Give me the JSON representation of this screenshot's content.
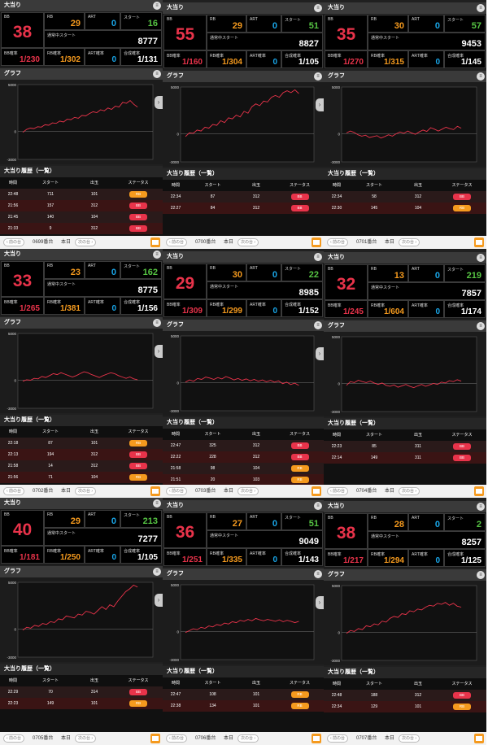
{
  "labels": {
    "section_hit": "大当り",
    "bb": "BB",
    "rb": "RB",
    "art": "ART",
    "start": "スタート",
    "total_start": "通常中スタート",
    "bb_prob": "BB確率",
    "rb_prob": "RB確率",
    "art_prob": "ART確率",
    "total_prob": "合成確率",
    "graph": "グラフ",
    "history": "大当り履歴（一覧）",
    "col_time": "時間",
    "col_start": "スタート",
    "col_out": "出玉",
    "col_status": "ステータス",
    "prev": "‹ 前の台",
    "next": "次の台 ›",
    "today": "本日",
    "menu_icon": "≡",
    "arrow": "›"
  },
  "axis": {
    "top": "5000",
    "zero": "0",
    "bottom": "-3000"
  },
  "machines": [
    {
      "id": "m0699",
      "name": "0699番台",
      "bb": "38",
      "rb": "29",
      "art": "0",
      "start": "16",
      "total_start": "8777",
      "bb_prob": "1/230",
      "rb_prob": "1/302",
      "art_prob": "0",
      "total_prob": "1/131",
      "graph": [
        -100,
        200,
        350,
        300,
        500,
        450,
        700,
        650,
        900,
        850,
        1100,
        1000,
        1300,
        1250,
        1500,
        1400,
        1700,
        1650,
        1900,
        2100,
        2000,
        2300,
        2200,
        2500,
        2350,
        2700,
        2600,
        3100,
        3000,
        3300,
        2900,
        2600
      ],
      "history": [
        {
          "time": "22:48",
          "start": "711",
          "out": "101",
          "status": "RB"
        },
        {
          "time": "21:56",
          "start": "157",
          "out": "312",
          "status": "BB"
        },
        {
          "time": "21:45",
          "start": "140",
          "out": "104",
          "status": "BB"
        },
        {
          "time": "21:33",
          "start": "9",
          "out": "312",
          "status": "BB"
        }
      ]
    },
    {
      "id": "m0700",
      "name": "0700番台",
      "bb": "55",
      "rb": "29",
      "art": "0",
      "start": "51",
      "total_start": "8827",
      "bb_prob": "1/160",
      "rb_prob": "1/304",
      "art_prob": "0",
      "total_prob": "1/105",
      "graph": [
        -300,
        100,
        50,
        400,
        300,
        700,
        600,
        1000,
        900,
        1400,
        1200,
        1700,
        1600,
        2000,
        1800,
        2400,
        2200,
        2900,
        3200,
        3000,
        3500,
        3400,
        3900,
        4100,
        3900,
        4400,
        4600,
        4400,
        4700,
        4300
      ],
      "history": [
        {
          "time": "22:34",
          "start": "87",
          "out": "312",
          "status": "BB"
        },
        {
          "time": "22:27",
          "start": "84",
          "out": "312",
          "status": "BB"
        }
      ]
    },
    {
      "id": "m0701",
      "name": "0701番台",
      "bb": "35",
      "rb": "30",
      "art": "0",
      "start": "57",
      "total_start": "9453",
      "bb_prob": "1/270",
      "rb_prob": "1/315",
      "art_prob": "0",
      "total_prob": "1/145",
      "graph": [
        100,
        300,
        150,
        -100,
        -250,
        -150,
        -400,
        -300,
        -200,
        -450,
        -300,
        -100,
        -250,
        0,
        200,
        50,
        300,
        100,
        -50,
        200,
        400,
        250,
        650,
        500,
        300,
        500,
        700,
        550,
        450,
        800,
        600
      ],
      "history": [
        {
          "time": "22:34",
          "start": "58",
          "out": "312",
          "status": "BB"
        },
        {
          "time": "22:30",
          "start": "145",
          "out": "104",
          "status": "RB"
        }
      ]
    },
    {
      "id": "m0702",
      "name": "0702番台",
      "bb": "33",
      "rb": "23",
      "art": "0",
      "start": "162",
      "total_start": "8775",
      "bb_prob": "1/265",
      "rb_prob": "1/381",
      "art_prob": "0",
      "total_prob": "1/156",
      "graph": [
        -100,
        50,
        0,
        200,
        150,
        400,
        300,
        500,
        700,
        600,
        800,
        650,
        500,
        350,
        500,
        700,
        900,
        800,
        600,
        450,
        300,
        500,
        650,
        800,
        700,
        500,
        350,
        200,
        350,
        150,
        50
      ],
      "history": [
        {
          "time": "22:18",
          "start": "87",
          "out": "101",
          "status": "RB"
        },
        {
          "time": "22:13",
          "start": "194",
          "out": "312",
          "status": "BB"
        },
        {
          "time": "21:58",
          "start": "14",
          "out": "312",
          "status": "BB"
        },
        {
          "time": "21:56",
          "start": "71",
          "out": "104",
          "status": "RB"
        }
      ]
    },
    {
      "id": "m0703",
      "name": "0703番台",
      "bb": "29",
      "rb": "30",
      "art": "0",
      "start": "22",
      "total_start": "8985",
      "bb_prob": "1/309",
      "rb_prob": "1/299",
      "art_prob": "0",
      "total_prob": "1/152",
      "graph": [
        50,
        300,
        150,
        450,
        350,
        600,
        500,
        350,
        550,
        400,
        650,
        500,
        300,
        450,
        250,
        400,
        200,
        350,
        150,
        300,
        100,
        250,
        50,
        200,
        -100,
        50,
        -200,
        -50,
        -300
      ],
      "history": [
        {
          "time": "22:47",
          "start": "325",
          "out": "312",
          "status": "BB"
        },
        {
          "time": "22:22",
          "start": "228",
          "out": "312",
          "status": "BB"
        },
        {
          "time": "21:58",
          "start": "98",
          "out": "104",
          "status": "RB"
        },
        {
          "time": "21:51",
          "start": "20",
          "out": "103",
          "status": "RB"
        }
      ]
    },
    {
      "id": "m0704",
      "name": "0704番台",
      "bb": "32",
      "rb": "13",
      "art": "0",
      "start": "219",
      "total_start": "7857",
      "bb_prob": "1/245",
      "rb_prob": "1/604",
      "art_prob": "0",
      "total_prob": "1/174",
      "graph": [
        -200,
        200,
        100,
        350,
        200,
        100,
        250,
        50,
        -100,
        50,
        -200,
        -300,
        -150,
        -400,
        -250,
        -100,
        -300,
        -450,
        -250,
        -100,
        -300,
        -150,
        0,
        -100,
        150,
        50,
        300,
        200,
        400,
        250
      ],
      "history": [
        {
          "time": "22:23",
          "start": "85",
          "out": "311",
          "status": "BB"
        },
        {
          "time": "22:14",
          "start": "149",
          "out": "311",
          "status": "BB"
        }
      ]
    },
    {
      "id": "m0705",
      "name": "0705番台",
      "bb": "40",
      "rb": "29",
      "art": "0",
      "start": "213",
      "total_start": "7277",
      "bb_prob": "1/181",
      "rb_prob": "1/250",
      "art_prob": "0",
      "total_prob": "1/105",
      "graph": [
        -100,
        200,
        100,
        400,
        300,
        600,
        500,
        800,
        700,
        1100,
        1000,
        1400,
        1300,
        1200,
        1600,
        1500,
        1900,
        1800,
        1600,
        2000,
        2400,
        2100,
        2600,
        2400,
        3000,
        3500,
        4000,
        4300,
        4700,
        4500
      ],
      "history": [
        {
          "time": "22:29",
          "start": "70",
          "out": "314",
          "status": "BB"
        },
        {
          "time": "22:23",
          "start": "149",
          "out": "101",
          "status": "RB"
        }
      ]
    },
    {
      "id": "m0706",
      "name": "0706番台",
      "bb": "36",
      "rb": "27",
      "art": "0",
      "start": "51",
      "total_start": "9049",
      "bb_prob": "1/251",
      "rb_prob": "1/335",
      "art_prob": "0",
      "total_prob": "1/143",
      "graph": [
        -100,
        100,
        300,
        200,
        450,
        350,
        600,
        500,
        750,
        650,
        900,
        800,
        1050,
        950,
        1200,
        1100,
        1300,
        1150,
        1400,
        1250,
        1150,
        1300,
        1200,
        1100,
        1250,
        1050,
        1200,
        1100,
        950,
        1100
      ],
      "history": [
        {
          "time": "22:47",
          "start": "108",
          "out": "101",
          "status": "RB"
        },
        {
          "time": "22:38",
          "start": "134",
          "out": "101",
          "status": "RB"
        }
      ]
    },
    {
      "id": "m0707",
      "name": "0707番台",
      "bb": "38",
      "rb": "28",
      "art": "0",
      "start": "2",
      "total_start": "8257",
      "bb_prob": "1/217",
      "rb_prob": "1/294",
      "art_prob": "0",
      "total_prob": "1/125",
      "graph": [
        -100,
        200,
        100,
        400,
        300,
        700,
        600,
        900,
        800,
        1200,
        1100,
        1500,
        1700,
        1600,
        2000,
        1900,
        2300,
        2200,
        2500,
        2400,
        2700,
        2900,
        2800,
        3100,
        3000,
        3200,
        2900,
        3100,
        2800,
        2700
      ],
      "history": [
        {
          "time": "22:48",
          "start": "188",
          "out": "312",
          "status": "BB"
        },
        {
          "time": "22:34",
          "start": "129",
          "out": "101",
          "status": "RB"
        }
      ]
    }
  ],
  "colors": {
    "line": "#e8334a",
    "bb": "#e8334a",
    "rb": "#f59a1e",
    "art": "#19a6e8",
    "start": "#56c443"
  }
}
